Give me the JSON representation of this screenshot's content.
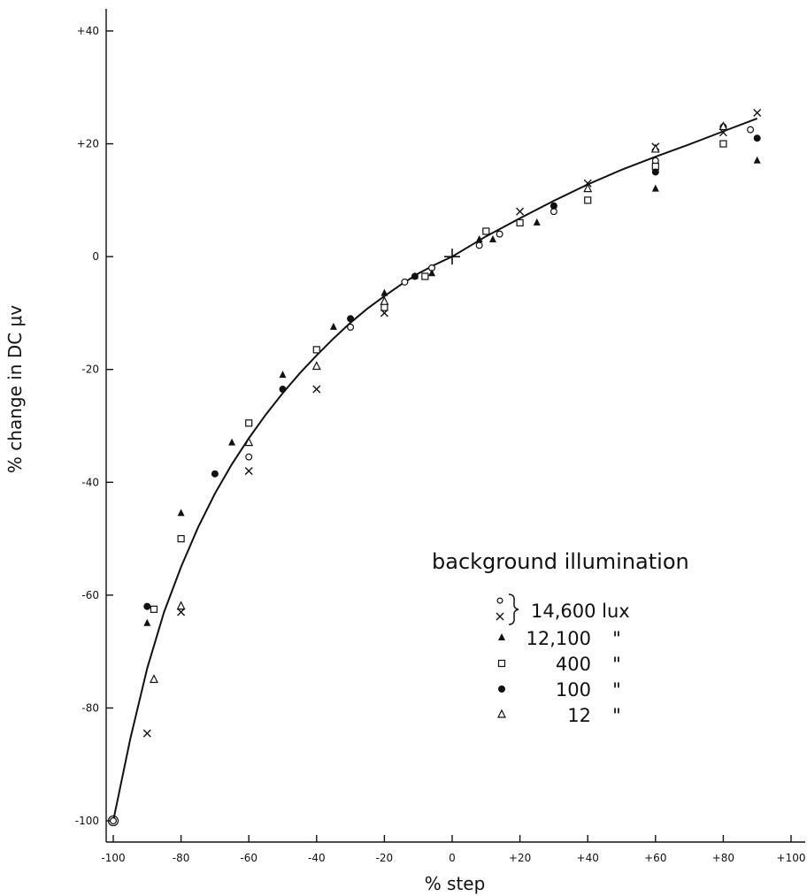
{
  "chart_data": {
    "type": "scatter",
    "title": "",
    "xlabel": "% step",
    "ylabel": "% change in DC μv",
    "xlim": [
      -100,
      100
    ],
    "ylim": [
      -100,
      40
    ],
    "xticks": [
      -100,
      -80,
      -60,
      -40,
      -20,
      0,
      20,
      40,
      60,
      80,
      100
    ],
    "xtick_labels": [
      "-100",
      "-80",
      "-60",
      "-40",
      "-20",
      "0",
      "+20",
      "+40",
      "+60",
      "+80",
      "+100"
    ],
    "yticks": [
      -100,
      -80,
      -60,
      -40,
      -20,
      0,
      20,
      40
    ],
    "ytick_labels": [
      "-100",
      "-80",
      "-60",
      "-40",
      "-20",
      "0",
      "+20",
      "+40"
    ],
    "grid": false,
    "legend": {
      "title": "background illumination",
      "placement": "center-right",
      "entries": [
        {
          "marker": "open-circle",
          "label": "14,600 lux",
          "grouped": true
        },
        {
          "marker": "x",
          "label": "",
          "grouped": true
        },
        {
          "marker": "filled-triangle",
          "label": "12,100 \""
        },
        {
          "marker": "open-square",
          "label": "400 \""
        },
        {
          "marker": "filled-circle",
          "label": "100 \""
        },
        {
          "marker": "open-triangle",
          "label": "12 \""
        }
      ]
    },
    "fit_curve": {
      "x": [
        -100,
        -95,
        -90,
        -85,
        -80,
        -75,
        -70,
        -65,
        -60,
        -55,
        -50,
        -45,
        -40,
        -35,
        -30,
        -25,
        -20,
        -15,
        -10,
        -5,
        0,
        10,
        20,
        30,
        40,
        50,
        60,
        70,
        80,
        90
      ],
      "y": [
        -100,
        -85.5,
        -73,
        -63,
        -55,
        -48,
        -42,
        -36.8,
        -32.2,
        -28,
        -24.2,
        -20.7,
        -17.5,
        -14.5,
        -11.7,
        -9.2,
        -7,
        -4.9,
        -3,
        -1.4,
        0,
        3.6,
        6.8,
        9.9,
        12.8,
        15.4,
        17.7,
        19.9,
        22.2,
        24.5
      ]
    },
    "series": [
      {
        "marker": "open-circle",
        "points": [
          [
            -100,
            -100
          ],
          [
            -88,
            -62.5
          ],
          [
            -60,
            -35.5
          ],
          [
            -30,
            -12.5
          ],
          [
            -14,
            -4.5
          ],
          [
            -6,
            -2
          ],
          [
            8,
            2
          ],
          [
            14,
            4
          ],
          [
            30,
            8
          ],
          [
            60,
            17
          ],
          [
            80,
            23
          ],
          [
            88,
            22.5
          ]
        ]
      },
      {
        "marker": "x",
        "points": [
          [
            -90,
            -84.5
          ],
          [
            -80,
            -63
          ],
          [
            -60,
            -38
          ],
          [
            -40,
            -23.5
          ],
          [
            -20,
            -10
          ],
          [
            20,
            8
          ],
          [
            40,
            13
          ],
          [
            60,
            19.5
          ],
          [
            80,
            22
          ],
          [
            90,
            25.5
          ]
        ]
      },
      {
        "marker": "filled-triangle",
        "points": [
          [
            -90,
            -65
          ],
          [
            -80,
            -45.5
          ],
          [
            -65,
            -33
          ],
          [
            -50,
            -21
          ],
          [
            -35,
            -12.5
          ],
          [
            -20,
            -6.5
          ],
          [
            -11,
            -3.5
          ],
          [
            -6,
            -3
          ],
          [
            8,
            3
          ],
          [
            12,
            3
          ],
          [
            25,
            6
          ],
          [
            60,
            12
          ],
          [
            90,
            17
          ]
        ]
      },
      {
        "marker": "open-square",
        "points": [
          [
            -88,
            -62.5
          ],
          [
            -80,
            -50
          ],
          [
            -60,
            -29.5
          ],
          [
            -40,
            -16.5
          ],
          [
            -20,
            -9
          ],
          [
            -8,
            -3.5
          ],
          [
            10,
            4.5
          ],
          [
            20,
            6
          ],
          [
            40,
            10
          ],
          [
            60,
            16
          ],
          [
            80,
            20
          ]
        ]
      },
      {
        "marker": "filled-circle",
        "points": [
          [
            -90,
            -62
          ],
          [
            -70,
            -38.5
          ],
          [
            -50,
            -23.5
          ],
          [
            -30,
            -11
          ],
          [
            -11,
            -3.5
          ],
          [
            30,
            9
          ],
          [
            60,
            15
          ],
          [
            90,
            21
          ]
        ]
      },
      {
        "marker": "open-triangle",
        "points": [
          [
            -88,
            -75
          ],
          [
            -80,
            -62
          ],
          [
            -60,
            -33
          ],
          [
            -40,
            -19.5
          ],
          [
            -20,
            -8
          ],
          [
            40,
            12
          ],
          [
            60,
            19
          ],
          [
            80,
            23
          ]
        ]
      }
    ]
  }
}
